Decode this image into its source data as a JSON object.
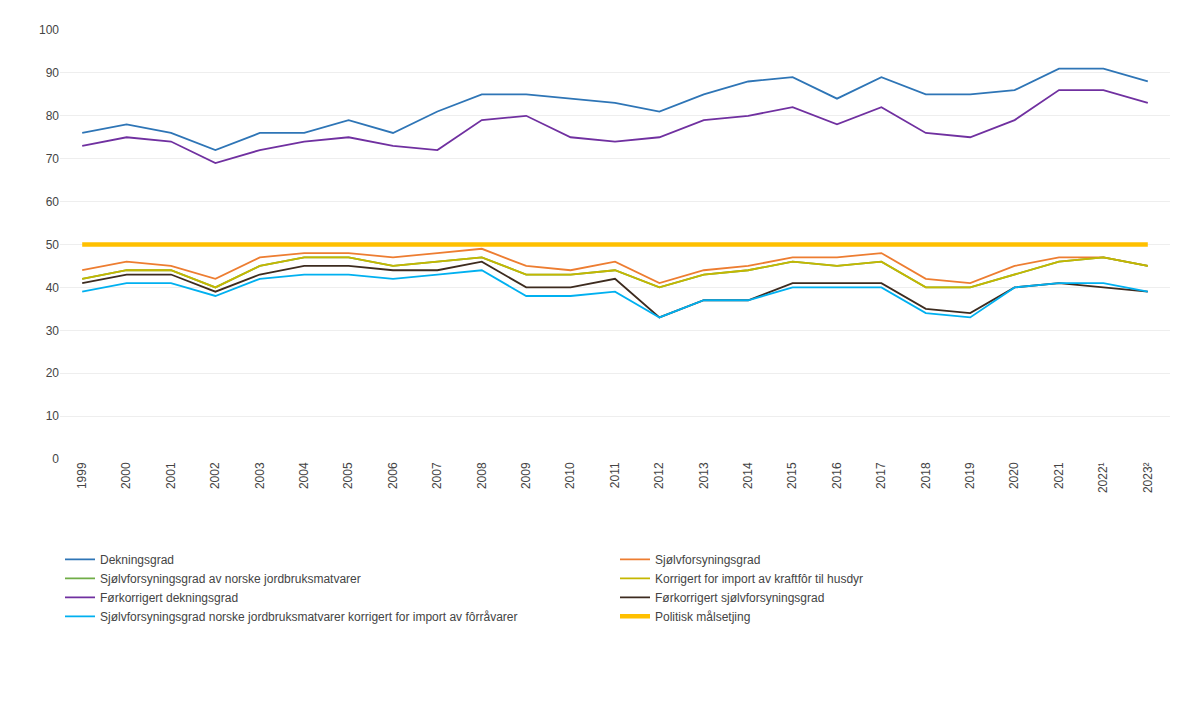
{
  "chart_data": {
    "type": "line",
    "categories": [
      "1999",
      "2000",
      "2001",
      "2002",
      "2003",
      "2004",
      "2005",
      "2006",
      "2007",
      "2008",
      "2009",
      "2010",
      "2011",
      "2012",
      "2013",
      "2014",
      "2015",
      "2016",
      "2017",
      "2018",
      "2019",
      "2020",
      "2021",
      "2022¹",
      "2023²"
    ],
    "series": [
      {
        "name": "Dekningsgrad",
        "color": "#2e75b6",
        "values": [
          76,
          78,
          76,
          72,
          76,
          76,
          79,
          76,
          81,
          85,
          85,
          84,
          83,
          81,
          85,
          88,
          89,
          84,
          89,
          85,
          85,
          86,
          91,
          91,
          88
        ]
      },
      {
        "name": "Sjølvforsyningsgrad",
        "color": "#ed7d31",
        "values": [
          44,
          46,
          45,
          42,
          47,
          48,
          48,
          47,
          48,
          49,
          45,
          44,
          46,
          41,
          44,
          45,
          47,
          47,
          48,
          42,
          41,
          45,
          47,
          47,
          45
        ]
      },
      {
        "name": "Sjølvforsyningsgrad av norske jordbruksmatvarer",
        "color": "#70ad47",
        "values": [
          42,
          44,
          44,
          40,
          45,
          47,
          47,
          45,
          46,
          47,
          43,
          43,
          44,
          40,
          43,
          44,
          46,
          45,
          46,
          40,
          40,
          43,
          46,
          47,
          45
        ]
      },
      {
        "name": "Korrigert for import av kraftfôr til husdyr",
        "color": "#c5b700",
        "values": [
          42,
          44,
          44,
          40,
          45,
          47,
          47,
          45,
          46,
          47,
          43,
          43,
          44,
          40,
          43,
          44,
          46,
          45,
          46,
          40,
          40,
          43,
          46,
          47,
          45
        ]
      },
      {
        "name": "Førkorrigert dekningsgrad",
        "color": "#7030a0",
        "values": [
          73,
          75,
          74,
          69,
          72,
          74,
          75,
          73,
          72,
          79,
          80,
          75,
          74,
          75,
          79,
          80,
          82,
          78,
          82,
          76,
          75,
          79,
          86,
          86,
          83
        ]
      },
      {
        "name": "Førkorrigert sjølvforsyningsgrad",
        "color": "#3d2b1f",
        "values": [
          41,
          43,
          43,
          39,
          43,
          45,
          45,
          44,
          44,
          46,
          40,
          40,
          42,
          33,
          37,
          37,
          41,
          41,
          41,
          35,
          34,
          40,
          41,
          40,
          39
        ]
      },
      {
        "name": "Sjølvforsyningsgrad norske jordbruksmatvarer korrigert for import av fôrråvarer",
        "color": "#00b0f0",
        "values": [
          39,
          41,
          41,
          38,
          42,
          43,
          43,
          42,
          43,
          44,
          38,
          38,
          39,
          33,
          37,
          37,
          40,
          40,
          40,
          34,
          33,
          40,
          41,
          41,
          39
        ]
      },
      {
        "name": "Politisk målsetjing",
        "color": "#ffc000",
        "line_style": "thick",
        "values": [
          50,
          50,
          50,
          50,
          50,
          50,
          50,
          50,
          50,
          50,
          50,
          50,
          50,
          50,
          50,
          50,
          50,
          50,
          50,
          50,
          50,
          50,
          50,
          50,
          50
        ]
      }
    ],
    "ylim": [
      0,
      100
    ],
    "yticks": [
      0,
      10,
      20,
      30,
      40,
      50,
      60,
      70,
      80,
      90,
      100
    ],
    "grid": true,
    "legend": "bottom"
  }
}
